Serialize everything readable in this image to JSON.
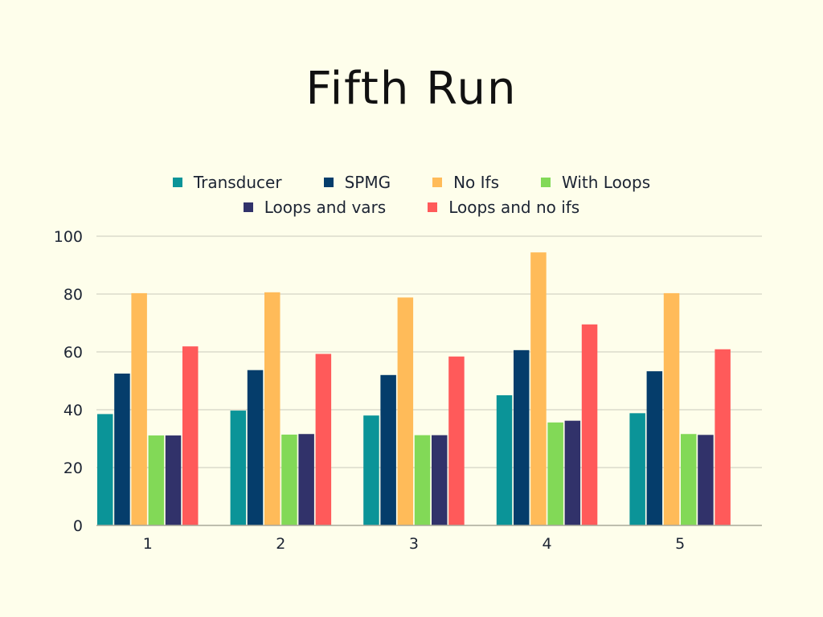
{
  "chart_data": {
    "type": "bar",
    "title": "Fifth Run",
    "xlabel": "",
    "ylabel": "",
    "categories": [
      "1",
      "2",
      "3",
      "4",
      "5"
    ],
    "ylim": [
      0,
      100
    ],
    "yticks": [
      "0",
      "20",
      "40",
      "60",
      "80",
      "100"
    ],
    "grid": true,
    "legend_position": "top",
    "series": [
      {
        "name": "Transducer",
        "color": "#0b9498",
        "values": [
          38.5,
          39.7,
          38.0,
          45.0,
          38.8
        ]
      },
      {
        "name": "SPMG",
        "color": "#053d6b",
        "values": [
          52.5,
          53.7,
          52.0,
          60.6,
          53.3
        ]
      },
      {
        "name": "No Ifs",
        "color": "#ffbb59",
        "values": [
          80.3,
          80.6,
          78.8,
          94.4,
          80.3
        ]
      },
      {
        "name": "With Loops",
        "color": "#82d957",
        "values": [
          31.1,
          31.4,
          31.2,
          35.6,
          31.6
        ]
      },
      {
        "name": "Loops and vars",
        "color": "#31326a",
        "values": [
          31.1,
          31.6,
          31.2,
          36.2,
          31.3
        ]
      },
      {
        "name": "Loops and no ifs",
        "color": "#ff5a5a",
        "values": [
          61.9,
          59.3,
          58.4,
          69.5,
          60.9
        ]
      }
    ]
  }
}
